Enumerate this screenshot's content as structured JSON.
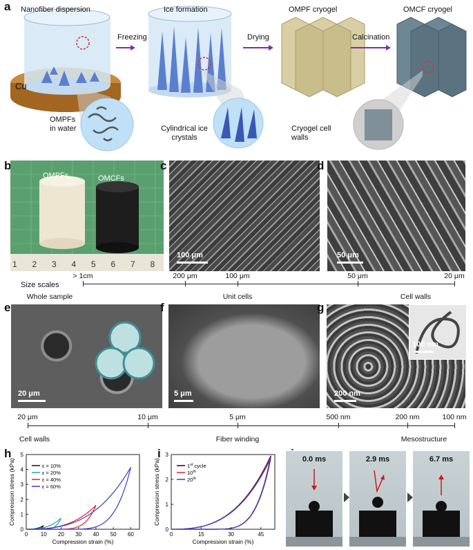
{
  "panel_a": {
    "label": "a",
    "stage1": "Nanofiber dispersion",
    "stage2": "Ice formation",
    "stage3": "OMPF cryogel",
    "stage4": "OMCF cryogel",
    "step1": "Freezing",
    "step2": "Drying",
    "step3": "Calcination",
    "cu": "Cu",
    "zoom1": "OMPFs\nin water",
    "zoom2": "Cylindrical ice\ncrystals",
    "zoom3": "Cryogel cell\nwalls"
  },
  "panel_b": {
    "label": "b",
    "sample1": "OMPFs",
    "sample2": "OMCFs",
    "ruler": [
      "1",
      "2",
      "3",
      "4",
      "5",
      "6",
      "7",
      "8"
    ]
  },
  "panel_c": {
    "label": "c",
    "scalebar": "100 μm"
  },
  "panel_d": {
    "label": "d",
    "scalebar": "50 μm"
  },
  "scale1": {
    "title": "Size scales",
    "ticks": [
      "> 1cm",
      "200 μm",
      "100 μm",
      "50 μm",
      "20 μm"
    ],
    "groups": [
      "Whole sample",
      "Unit cells",
      "Cell walls"
    ]
  },
  "panel_e": {
    "label": "e",
    "scalebar": "20 μm"
  },
  "panel_f": {
    "label": "f",
    "scalebar": "5 μm"
  },
  "panel_g": {
    "label": "g",
    "scalebar": "200 nm",
    "inset_scalebar": "100 nm"
  },
  "scale2": {
    "ticks": [
      "20 μm",
      "10 μm",
      "5 μm",
      "500 nm",
      "200 nm",
      "100 nm"
    ],
    "groups": [
      "Cell walls",
      "Fiber winding",
      "Mesostructure"
    ]
  },
  "chart_data": [
    {
      "panel": "h",
      "type": "line",
      "xlabel": "Compression strain (%)",
      "ylabel": "Compression stress (kPa)",
      "xlim": [
        0,
        65
      ],
      "ylim": [
        0,
        5
      ],
      "xticks": [
        0,
        10,
        20,
        30,
        40,
        50,
        60
      ],
      "yticks": [
        0,
        1,
        2,
        3,
        4,
        5
      ],
      "legend_position": "top-left",
      "series": [
        {
          "name": "ε = 10%",
          "color": "#111111",
          "max_strain": 10,
          "max_stress": 0.25
        },
        {
          "name": "ε = 20%",
          "color": "#21a3a8",
          "max_strain": 20,
          "max_stress": 0.75
        },
        {
          "name": "ε = 40%",
          "color": "#e02020",
          "max_strain": 40,
          "max_stress": 1.6
        },
        {
          "name": "ε = 60%",
          "color": "#3a3ad0",
          "max_strain": 60,
          "max_stress": 4.15
        }
      ]
    },
    {
      "panel": "i",
      "type": "line",
      "xlabel": "Compression strain (%)",
      "ylabel": "Compression stress (kPa)",
      "xlim": [
        0,
        52
      ],
      "ylim": [
        0,
        3
      ],
      "xticks": [
        0,
        15,
        30,
        45
      ],
      "yticks": [
        0,
        1,
        2,
        3
      ],
      "legend_position": "top-left",
      "series": [
        {
          "name": "1st cycle",
          "color": "#111111",
          "max_strain": 50,
          "max_stress": 2.95
        },
        {
          "name": "10th",
          "color": "#e02020",
          "max_strain": 50,
          "max_stress": 2.9
        },
        {
          "name": "20th",
          "color": "#3a3ad0",
          "max_strain": 50,
          "max_stress": 2.85
        }
      ]
    }
  ],
  "panel_h": {
    "label": "h",
    "legend": [
      "ε = 10%",
      "ε = 20%",
      "ε = 40%",
      "ε = 60%"
    ]
  },
  "panel_i": {
    "label": "i",
    "legend_sup": [
      [
        "1",
        "st",
        " cycle"
      ],
      [
        "10",
        "th",
        ""
      ],
      [
        "20",
        "th",
        ""
      ]
    ]
  },
  "panel_j": {
    "label": "j",
    "frames": [
      "0.0 ms",
      "2.9 ms",
      "6.7 ms"
    ]
  }
}
